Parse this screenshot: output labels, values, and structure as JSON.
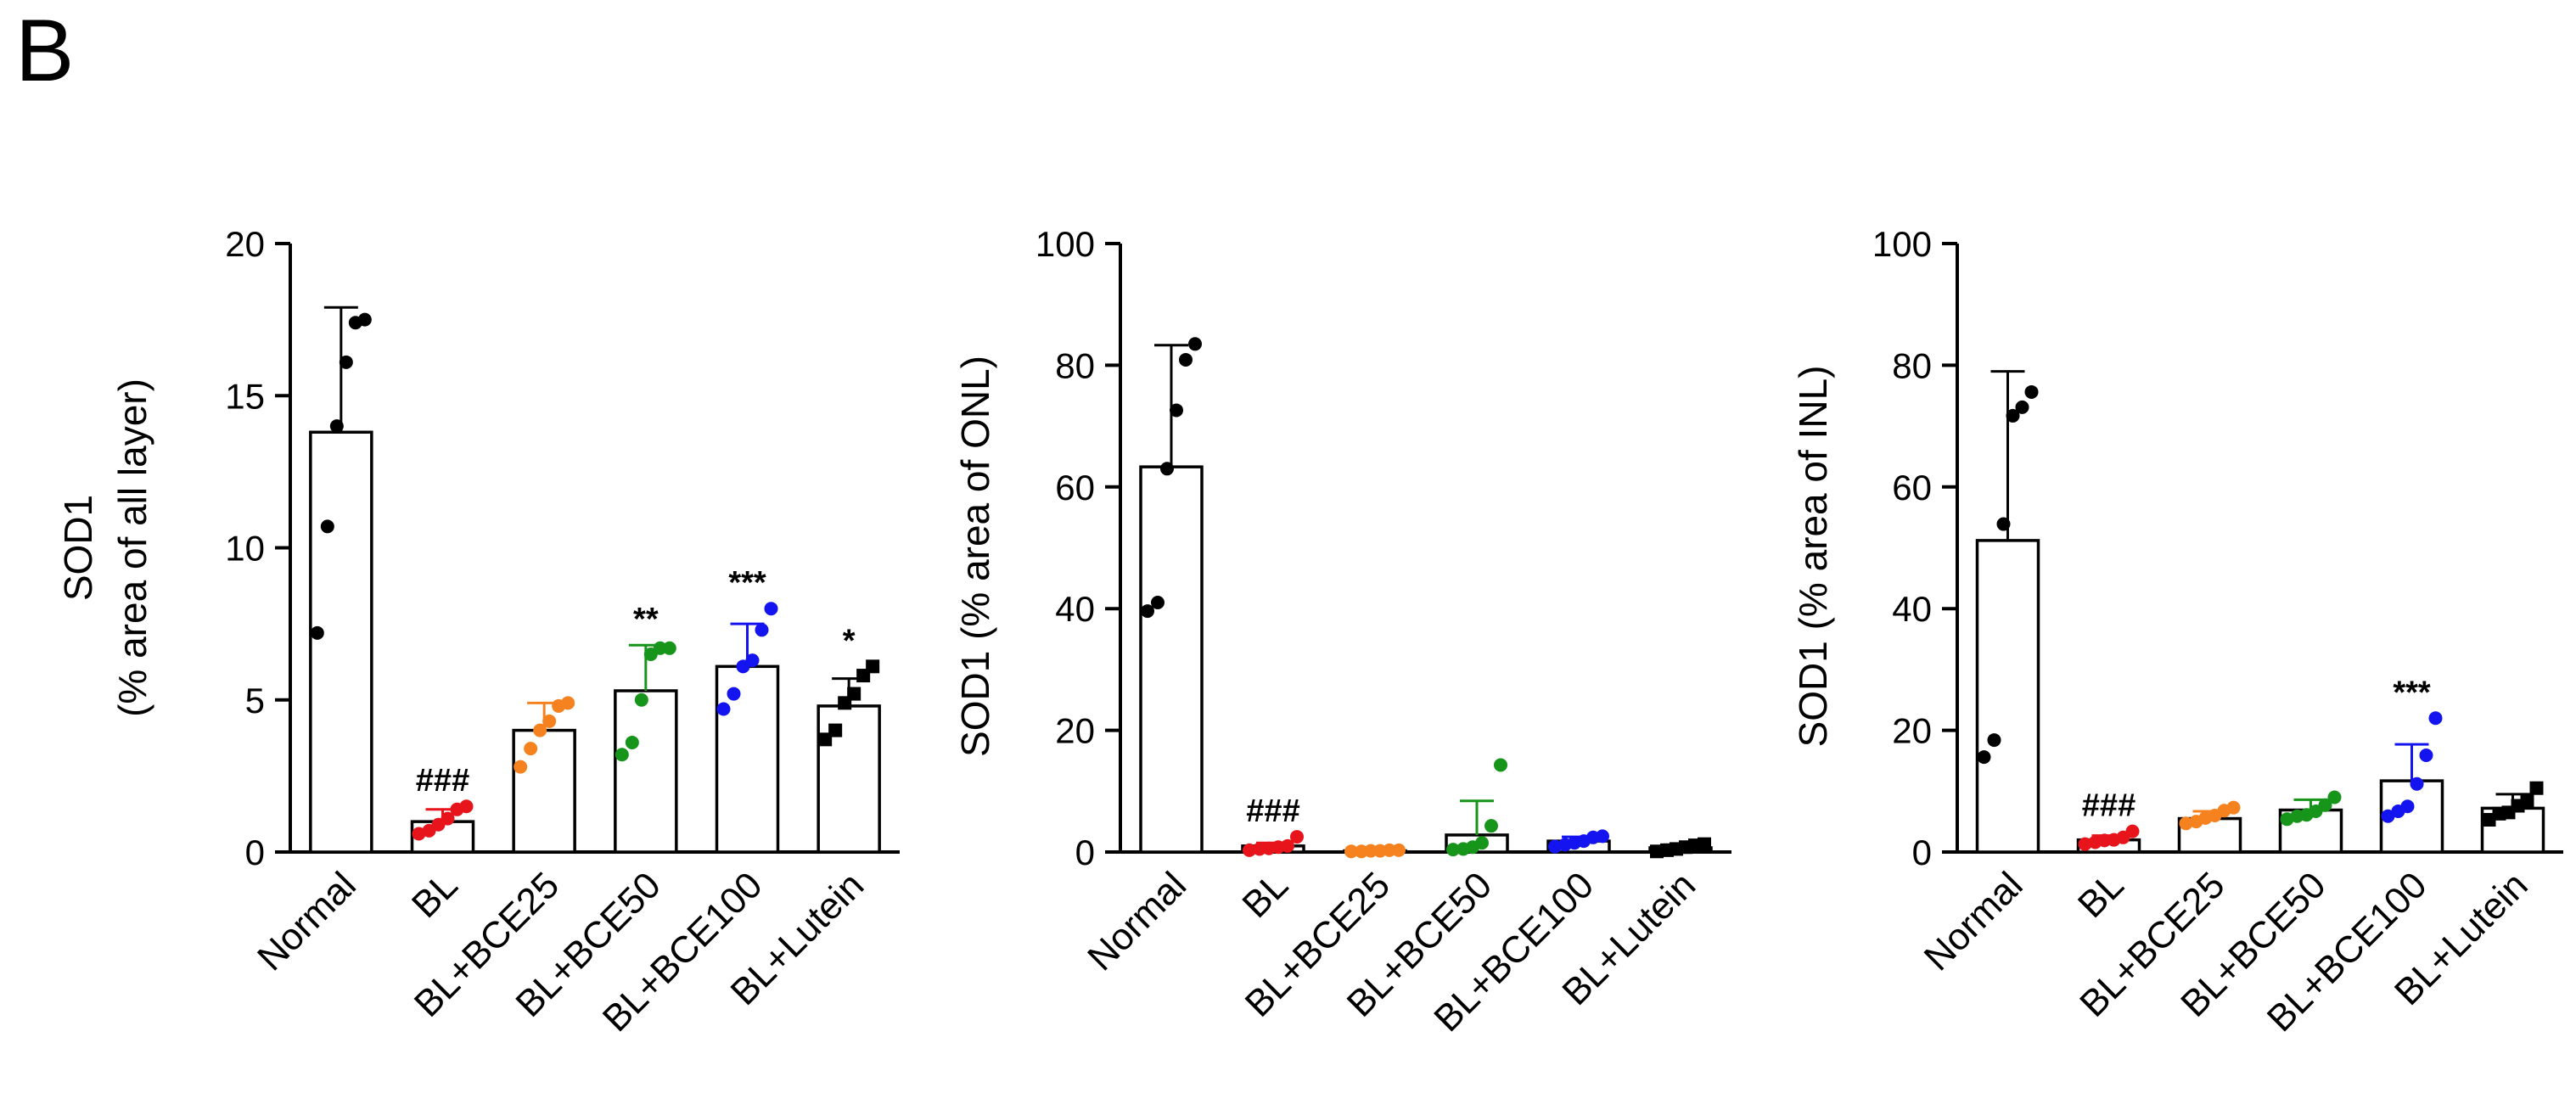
{
  "figure": {
    "panel_label": "B"
  },
  "chart_data": [
    {
      "type": "bar",
      "title": "",
      "ylabel_line1": "SOD1",
      "ylabel_line2": "(% area of all layer)",
      "xlabel": "",
      "ylim": [
        0,
        20
      ],
      "yticks": [
        0,
        5,
        10,
        15,
        20
      ],
      "categories": [
        "Normal",
        "BL",
        "BL+BCE25",
        "BL+BCE50",
        "BL+BCE100",
        "BL+Lutein"
      ],
      "colors": [
        "#000000",
        "#e8141b",
        "#f5821f",
        "#17951a",
        "#1414f0",
        "#000000"
      ],
      "markers": [
        "circle",
        "circle",
        "circle",
        "circle",
        "circle",
        "square"
      ],
      "means": [
        13.8,
        1.0,
        4.0,
        5.3,
        6.1,
        4.8
      ],
      "sd": [
        4.1,
        0.4,
        0.9,
        1.5,
        1.4,
        0.9
      ],
      "points": [
        [
          7.2,
          10.7,
          14.0,
          16.1,
          17.4,
          17.5
        ],
        [
          0.6,
          0.7,
          0.9,
          1.1,
          1.4,
          1.5
        ],
        [
          2.8,
          3.4,
          4.0,
          4.3,
          4.8,
          4.9
        ],
        [
          3.2,
          3.6,
          5.0,
          6.5,
          6.7,
          6.7
        ],
        [
          4.7,
          5.2,
          6.1,
          6.3,
          7.3,
          8.0
        ],
        [
          3.7,
          4.0,
          4.9,
          5.2,
          5.8,
          6.1
        ]
      ],
      "annotations": [
        "",
        "###",
        "",
        "**",
        "***",
        "*"
      ]
    },
    {
      "type": "bar",
      "title": "",
      "ylabel_line1": "SOD1 (% area of ONL)",
      "ylabel_line2": "",
      "xlabel": "",
      "ylim": [
        0,
        100
      ],
      "yticks": [
        0,
        20,
        40,
        60,
        80,
        100
      ],
      "categories": [
        "Normal",
        "BL",
        "BL+BCE25",
        "BL+BCE50",
        "BL+BCE100",
        "BL+Lutein"
      ],
      "colors": [
        "#000000",
        "#e8141b",
        "#f5821f",
        "#17951a",
        "#1414f0",
        "#000000"
      ],
      "markers": [
        "circle",
        "circle",
        "circle",
        "circle",
        "circle",
        "square"
      ],
      "means": [
        63.3,
        1.0,
        0.2,
        2.8,
        1.8,
        0.7
      ],
      "sd": [
        20.0,
        0.5,
        0.2,
        5.6,
        0.7,
        0.5
      ],
      "points": [
        [
          39.6,
          41.0,
          63.0,
          72.6,
          80.9,
          83.5
        ],
        [
          0.3,
          0.5,
          0.6,
          0.8,
          1.0,
          2.5
        ],
        [
          0.1,
          0.1,
          0.2,
          0.2,
          0.3,
          0.3
        ],
        [
          0.4,
          0.5,
          0.8,
          1.5,
          4.3,
          14.3
        ],
        [
          0.9,
          1.2,
          1.5,
          1.8,
          2.4,
          2.6
        ],
        [
          0.1,
          0.3,
          0.5,
          0.8,
          1.1,
          1.3
        ]
      ],
      "annotations": [
        "",
        "###",
        "",
        "",
        "",
        ""
      ]
    },
    {
      "type": "bar",
      "title": "",
      "ylabel_line1": "SOD1 (% area of INL)",
      "ylabel_line2": "",
      "xlabel": "",
      "ylim": [
        0,
        100
      ],
      "yticks": [
        0,
        20,
        40,
        60,
        80,
        100
      ],
      "categories": [
        "Normal",
        "BL",
        "BL+BCE25",
        "BL+BCE50",
        "BL+BCE100",
        "BL+Lutein"
      ],
      "colors": [
        "#000000",
        "#e8141b",
        "#f5821f",
        "#17951a",
        "#1414f0",
        "#000000"
      ],
      "markers": [
        "circle",
        "circle",
        "circle",
        "circle",
        "circle",
        "square"
      ],
      "means": [
        51.2,
        2.0,
        5.5,
        6.9,
        11.7,
        7.2
      ],
      "sd": [
        27.8,
        0.7,
        1.2,
        1.7,
        6.0,
        2.3
      ],
      "points": [
        [
          15.6,
          18.4,
          53.9,
          71.7,
          73.1,
          75.6
        ],
        [
          1.3,
          1.6,
          1.9,
          2.0,
          2.4,
          3.4
        ],
        [
          4.7,
          5.0,
          5.6,
          6.0,
          6.8,
          7.3
        ],
        [
          5.4,
          5.9,
          6.1,
          6.7,
          7.7,
          9.0
        ],
        [
          5.9,
          6.7,
          7.5,
          11.2,
          15.9,
          22.0
        ],
        [
          5.3,
          6.3,
          6.5,
          7.6,
          8.3,
          10.5
        ]
      ],
      "annotations": [
        "",
        "###",
        "",
        "",
        "***",
        ""
      ]
    }
  ]
}
